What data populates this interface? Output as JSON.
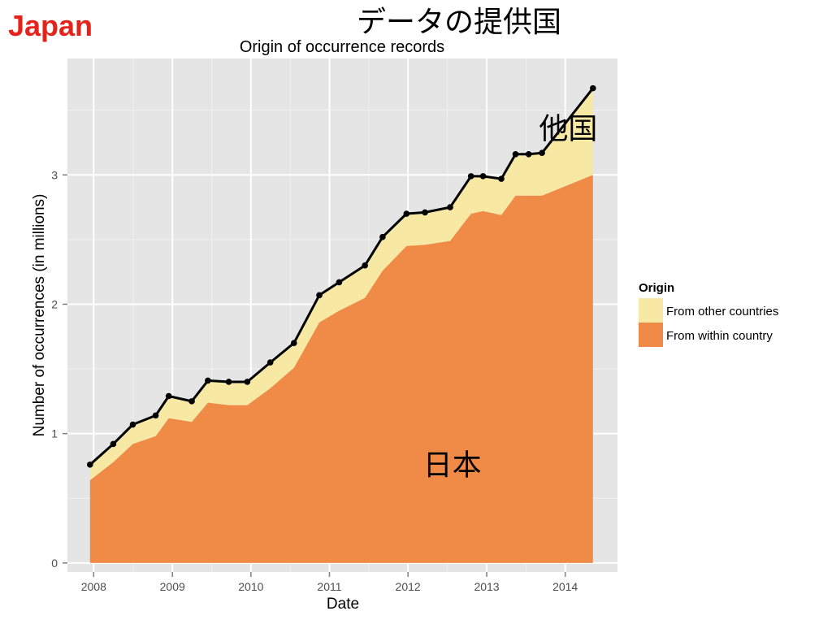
{
  "slide": {
    "label": "Japan",
    "label_color": "#e5231b",
    "title": "データの提供国"
  },
  "chart_data": {
    "type": "area",
    "title": "Origin of occurrence records",
    "xlabel": "Date",
    "ylabel": "Number of occurrences (in millions)",
    "xlim": [
      "2007-09-01",
      "2014-09-01"
    ],
    "ylim": [
      -0.07,
      3.9
    ],
    "x_ticks": [
      "2008",
      "2009",
      "2010",
      "2011",
      "2012",
      "2013",
      "2014"
    ],
    "y_ticks": [
      0,
      1,
      2,
      3
    ],
    "grid": true,
    "stacked": true,
    "legend": {
      "title": "Origin",
      "position": "right",
      "entries": [
        {
          "label": "From other countries",
          "color": "#f7e8a4"
        },
        {
          "label": "From within country",
          "color": "#f08b47"
        }
      ]
    },
    "x": [
      "2007-12-15",
      "2008-04-01",
      "2008-07-01",
      "2008-10-15",
      "2008-12-15",
      "2009-04-01",
      "2009-06-15",
      "2009-09-20",
      "2009-12-15",
      "2010-04-01",
      "2010-07-20",
      "2010-11-15",
      "2011-02-15",
      "2011-06-15",
      "2011-09-05",
      "2011-12-25",
      "2012-03-20",
      "2012-07-15",
      "2012-10-20",
      "2012-12-15",
      "2013-03-10",
      "2013-05-15",
      "2013-07-15",
      "2013-09-15",
      "2014-05-10"
    ],
    "series": [
      {
        "name": "From within country",
        "color": "#f08b47",
        "values": [
          0.64,
          0.78,
          0.92,
          0.98,
          1.12,
          1.09,
          1.24,
          1.22,
          1.22,
          1.35,
          1.51,
          1.86,
          1.95,
          2.05,
          2.26,
          2.45,
          2.46,
          2.49,
          2.7,
          2.72,
          2.69,
          2.84,
          2.84,
          2.84,
          3.0
        ]
      },
      {
        "name": "From other countries",
        "color": "#f7e8a4",
        "values": [
          0.12,
          0.14,
          0.15,
          0.16,
          0.17,
          0.16,
          0.17,
          0.18,
          0.18,
          0.2,
          0.19,
          0.21,
          0.22,
          0.25,
          0.26,
          0.25,
          0.25,
          0.26,
          0.29,
          0.27,
          0.28,
          0.32,
          0.32,
          0.33,
          0.67
        ]
      }
    ],
    "total_line": {
      "color": "#000000",
      "values": [
        0.76,
        0.92,
        1.07,
        1.14,
        1.29,
        1.25,
        1.41,
        1.4,
        1.4,
        1.55,
        1.7,
        2.07,
        2.17,
        2.3,
        2.52,
        2.7,
        2.71,
        2.75,
        2.99,
        2.99,
        2.97,
        3.16,
        3.16,
        3.17,
        3.67
      ]
    },
    "annotations": [
      {
        "text": "他国",
        "x": "2014-01-15",
        "y": 3.28
      },
      {
        "text": "日本",
        "x": "2012-07-25",
        "y": 0.68
      }
    ],
    "colors": {
      "panel": "#e5e5e5",
      "grid_major": "#ffffff",
      "grid_minor": "#f0f0f0"
    }
  }
}
